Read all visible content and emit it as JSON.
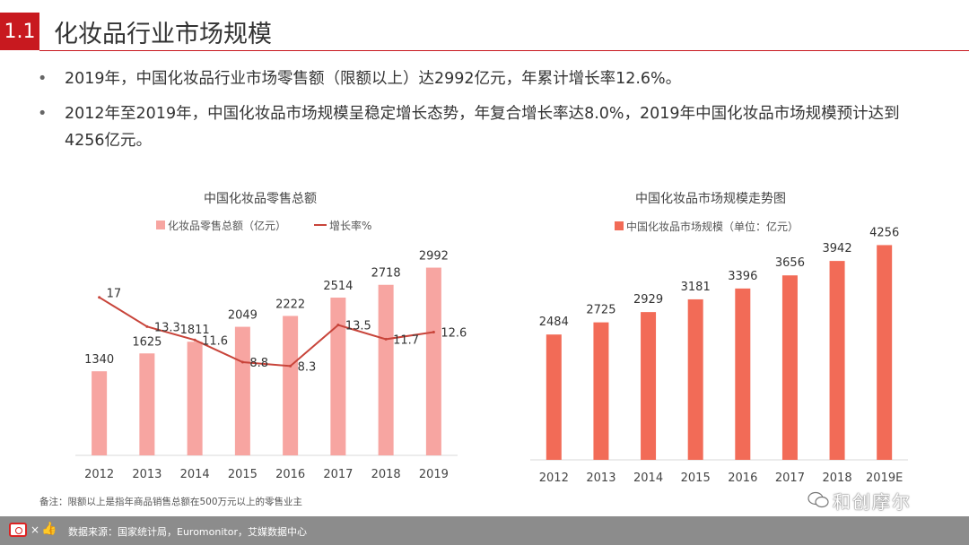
{
  "header": {
    "section_number": "1.1",
    "title": "化妆品行业市场规模"
  },
  "bullets": [
    "2019年，中国化妆品行业市场零售额（限额以上）达2992亿元，年累计增长率12.6%。",
    "2012年至2019年，中国化妆品市场规模呈稳定增长态势，年复合增长率达8.0%，2019年中国化妆品市场规模预计达到4256亿元。"
  ],
  "bullet_marker": "•",
  "colors": {
    "accent": "#c8191f",
    "bar_pink": "#f7a5a1",
    "bar_red": "#f26b57",
    "line": "#c8443a"
  },
  "chart_data": [
    {
      "type": "bar",
      "title": "中国化妆品零售总额",
      "categories": [
        "2012",
        "2013",
        "2014",
        "2015",
        "2016",
        "2017",
        "2018",
        "2019"
      ],
      "series": [
        {
          "name": "化妆品零售总额（亿元）",
          "kind": "bar",
          "values": [
            1340,
            1625,
            1811,
            2049,
            2222,
            2514,
            2718,
            2992
          ],
          "labels": [
            "1340",
            "1625",
            "1811",
            "2049",
            "2222",
            "2514",
            "2718",
            "2992"
          ]
        },
        {
          "name": "增长率%",
          "kind": "line",
          "values": [
            17,
            13.3,
            11.6,
            8.8,
            8.3,
            13.5,
            11.7,
            12.6
          ],
          "labels": [
            "17",
            "13.3",
            "11.6",
            "8.8",
            "8.3",
            "13.5",
            "11.7",
            "12.6"
          ]
        }
      ],
      "bar_ylim": [
        0,
        3400
      ],
      "line_ylim": [
        -3,
        24
      ],
      "legend_position": "top"
    },
    {
      "type": "bar",
      "title": "中国化妆品市场规模走势图",
      "categories": [
        "2012",
        "2013",
        "2014",
        "2015",
        "2016",
        "2017",
        "2018",
        "2019E"
      ],
      "series": [
        {
          "name": "中国化妆品市场规模（单位：亿元）",
          "values": [
            2484,
            2725,
            2929,
            3181,
            3396,
            3656,
            3942,
            4256
          ],
          "labels": [
            "2484",
            "2725",
            "2929",
            "3181",
            "3396",
            "3656",
            "3942",
            "4256"
          ]
        }
      ],
      "ylim": [
        0,
        4850
      ],
      "legend_position": "top"
    }
  ],
  "footnote": "备注：限额以上是指年商品销售总额在500万元以上的零售业主",
  "footer": {
    "source": "数据来源：国家统计局，Euromonitor，艾媒数据中心",
    "times": "×",
    "thumb": "👍"
  },
  "watermark": "和创摩尔"
}
